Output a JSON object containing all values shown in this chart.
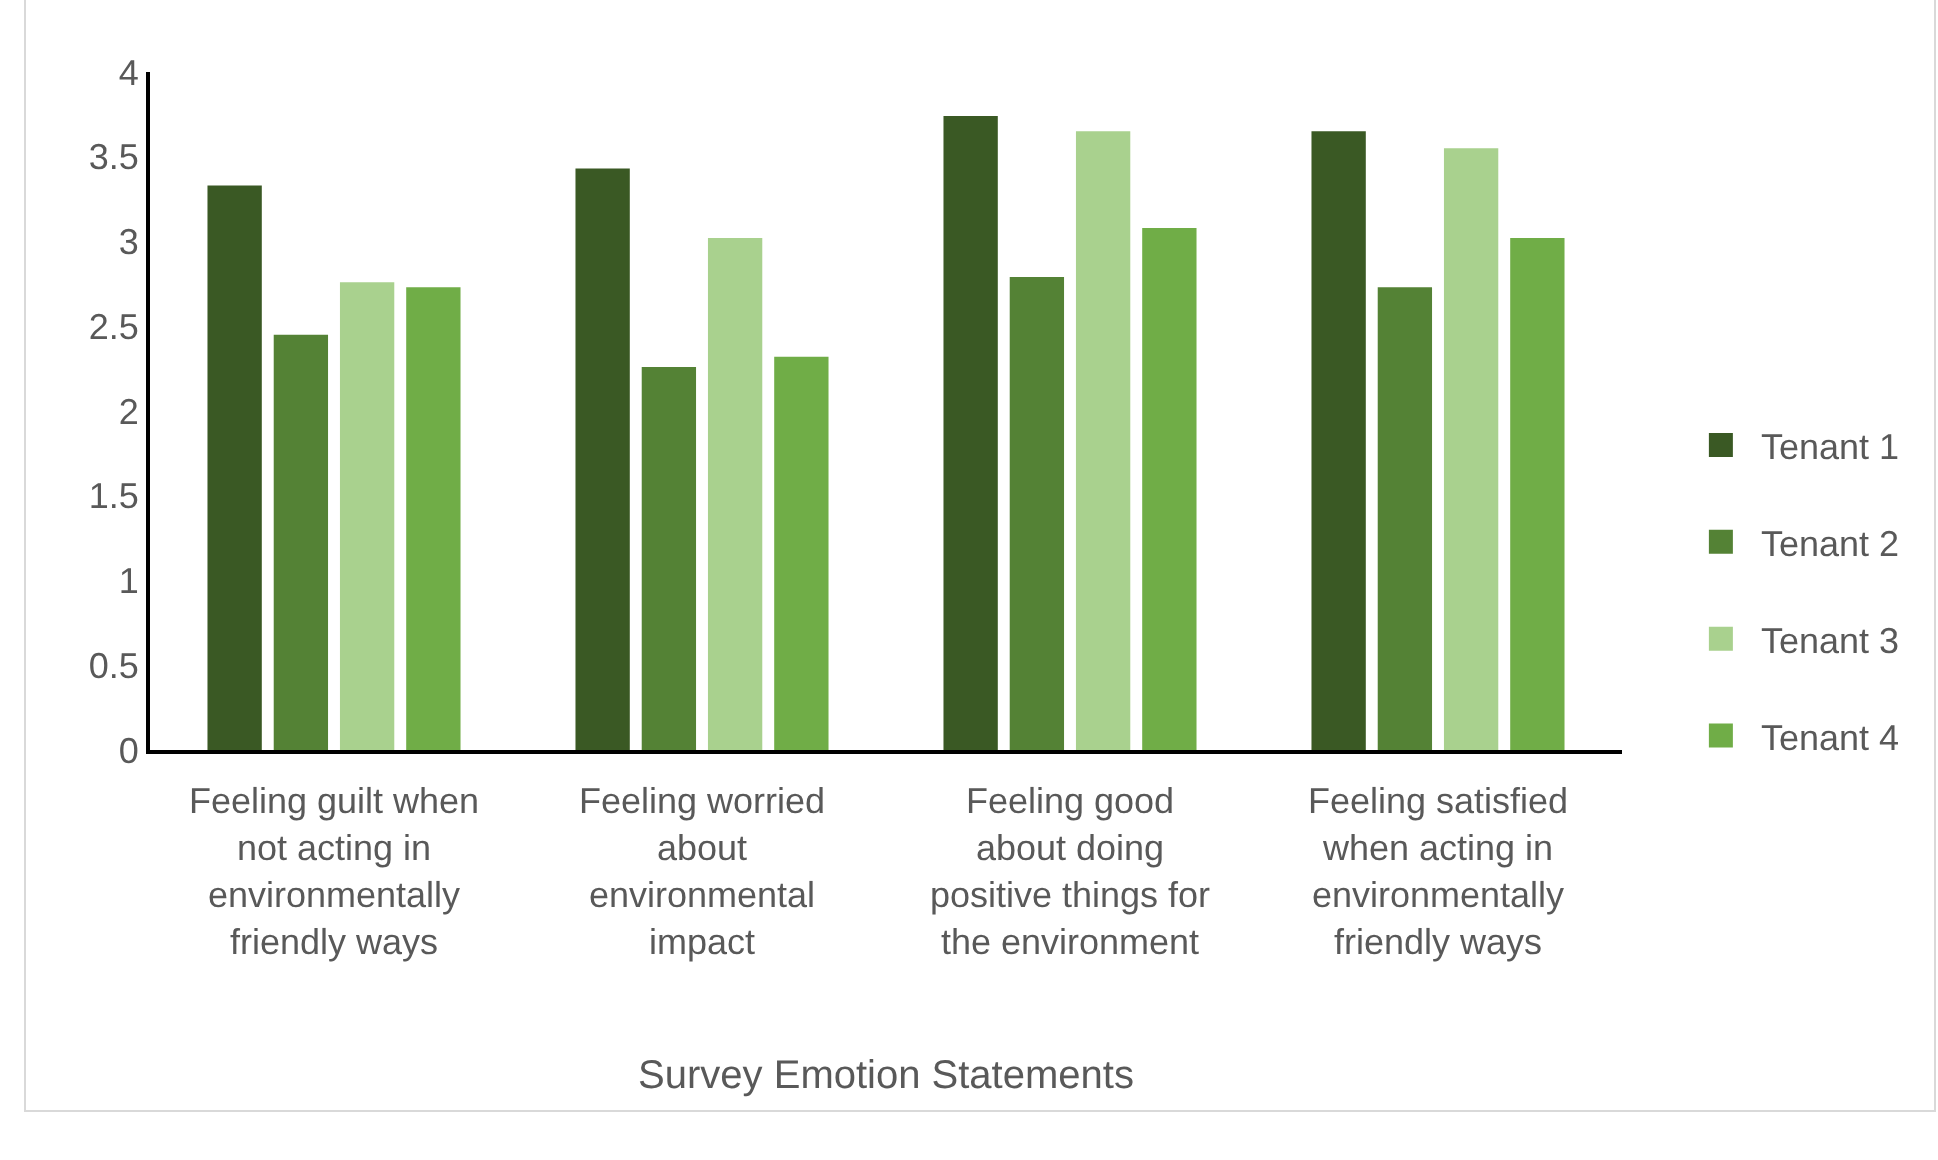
{
  "chart_data": {
    "type": "bar",
    "xlabel": "Survey Emotion Statements",
    "categories": [
      "Feeling guilt when\nnot acting in\nenvironmentally\nfriendly ways",
      "Feeling worried\nabout\nenvironmental\nimpact",
      "Feeling good\nabout doing\npositive things for\nthe environment",
      "Feeling satisfied\nwhen acting in\nenvironmentally\nfriendly ways"
    ],
    "series": [
      {
        "name": "Tenant 1",
        "color": "#3a5924",
        "values": [
          3.33,
          3.43,
          3.74,
          3.65
        ]
      },
      {
        "name": "Tenant 2",
        "color": "#548235",
        "values": [
          2.45,
          2.26,
          2.79,
          2.73
        ]
      },
      {
        "name": "Tenant 3",
        "color": "#a9d18e",
        "values": [
          2.76,
          3.02,
          3.65,
          3.55
        ]
      },
      {
        "name": "Tenant 4",
        "color": "#70ad47",
        "values": [
          2.73,
          2.32,
          3.08,
          3.02
        ]
      }
    ],
    "ylim": [
      0,
      4
    ],
    "yticks": [
      0,
      0.5,
      1,
      1.5,
      2,
      2.5,
      3,
      3.5,
      4
    ],
    "grid": false,
    "legend": "right"
  }
}
